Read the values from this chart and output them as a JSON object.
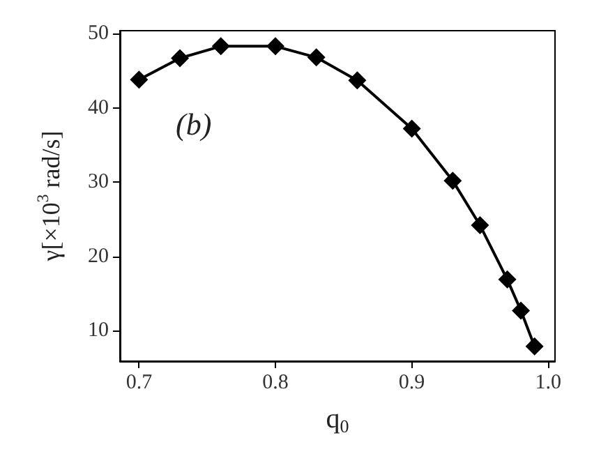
{
  "chart_data": {
    "type": "line",
    "xlabel": "q$_{0}$",
    "ylabel": "γ[×10$^{3}$ rad/s]",
    "x": [
      0.7,
      0.73,
      0.76,
      0.8,
      0.83,
      0.86,
      0.9,
      0.93,
      0.95,
      0.97,
      0.98,
      0.99
    ],
    "series": [
      {
        "color": "#000000",
        "values": [
          43.8,
          46.7,
          48.3,
          48.3,
          46.8,
          43.7,
          37.2,
          30.2,
          24.2,
          16.9,
          12.7,
          7.9
        ]
      }
    ],
    "xlim": [
      0.686,
      1.005
    ],
    "ylim": [
      5.9,
      50.4
    ],
    "xticks": [
      0.7,
      0.8,
      0.9,
      {
        "value": 1.0,
        "label": "1.0"
      }
    ],
    "yticks": [
      10,
      20,
      30,
      40,
      50
    ],
    "annotations": [
      "(b)"
    ],
    "marker": "diamond",
    "line_style": "solid",
    "grid": false
  }
}
